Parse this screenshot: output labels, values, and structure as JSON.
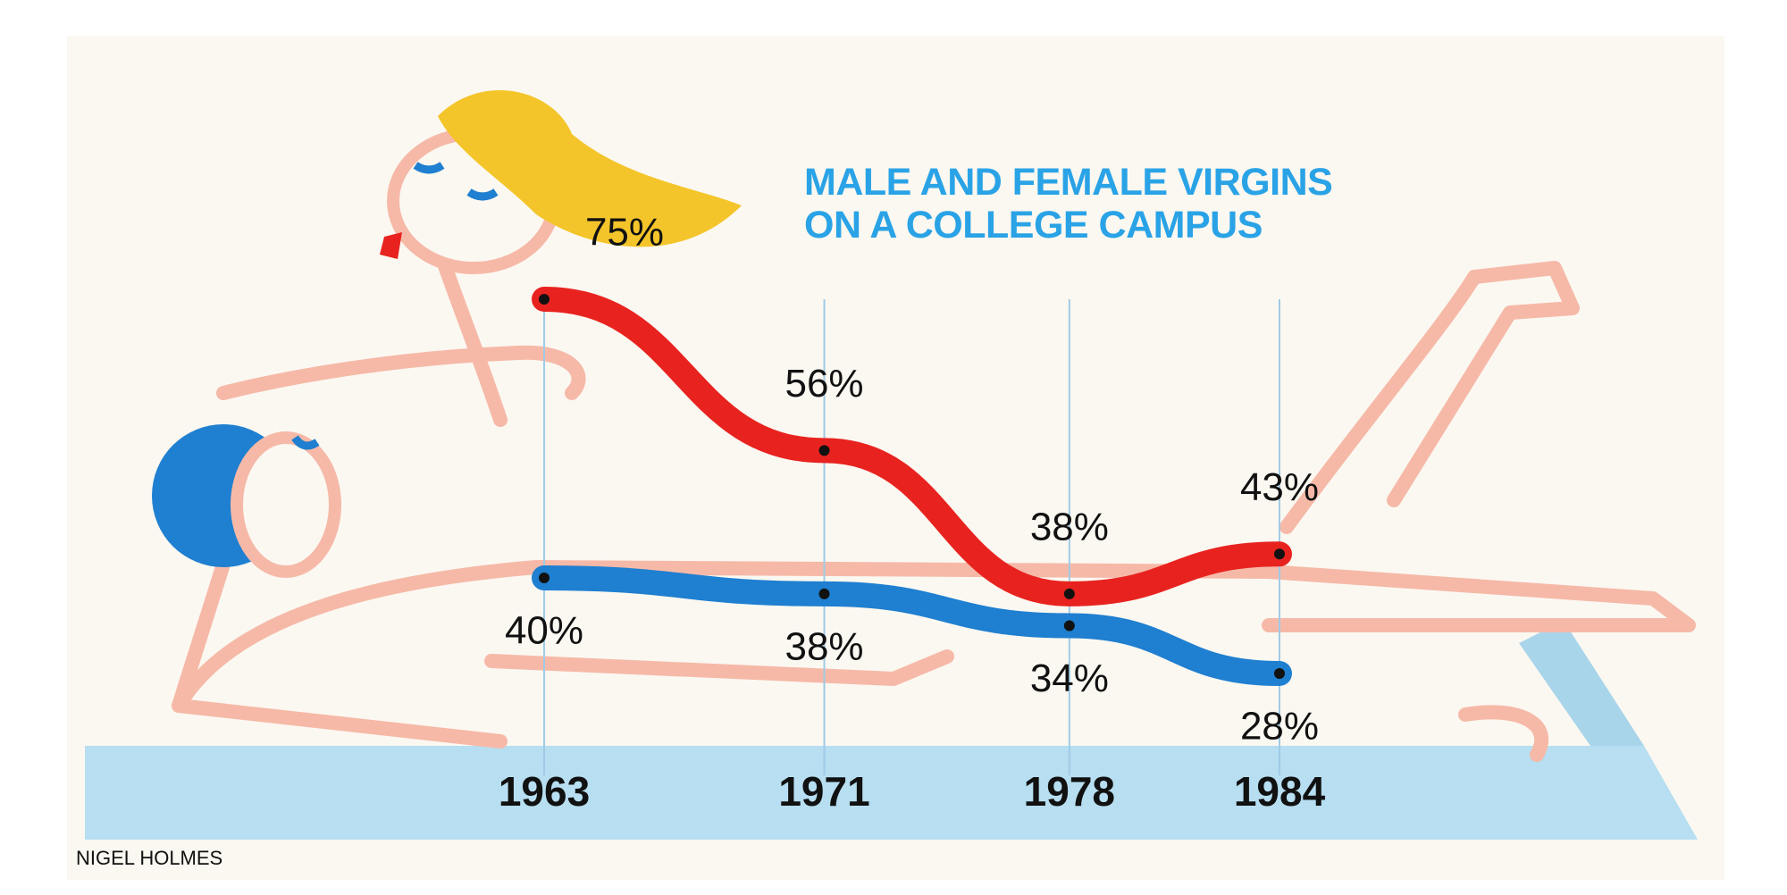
{
  "chart_data": {
    "type": "line",
    "title": "MALE AND FEMALE VIRGINS ON A COLLEGE CAMPUS",
    "credit": "NIGEL HOLMES",
    "x": [
      1963,
      1971,
      1978,
      1984
    ],
    "xlim": [
      1963,
      1984
    ],
    "xticks": [
      1963,
      1971,
      1978,
      1984
    ],
    "series": [
      {
        "color": "#e8231f",
        "values": [
          75,
          56,
          38,
          43
        ],
        "value_labels": [
          "75%",
          "56%",
          "38%",
          "43%"
        ]
      },
      {
        "color": "#1f7fd0",
        "values": [
          40,
          38,
          34,
          28
        ],
        "value_labels": [
          "40%",
          "38%",
          "34%",
          "28%"
        ]
      }
    ]
  }
}
